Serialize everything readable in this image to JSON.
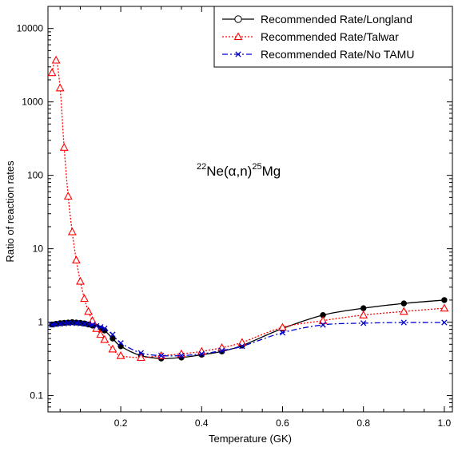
{
  "chart_data": {
    "type": "line",
    "title": "",
    "xlabel": "Temperature (GK)",
    "ylabel": "Ratio of reaction rates",
    "xlim": [
      0.02,
      1.02
    ],
    "ylim": [
      0.06,
      20000
    ],
    "yscale": "log",
    "grid": false,
    "legend_position": "top-right",
    "x_ticks": [
      0.2,
      0.4,
      0.6,
      0.8,
      1.0
    ],
    "x_tick_labels": [
      "0.2",
      "0.4",
      "0.6",
      "0.8",
      "1.0"
    ],
    "y_ticks": [
      0.1,
      1,
      10,
      100,
      1000,
      10000
    ],
    "y_tick_labels": [
      "0.1",
      "1",
      "10",
      "100",
      "1000",
      "10000"
    ],
    "annotation": {
      "mass1": "22",
      "element1": "Ne(",
      "alpha": "α",
      "mid": ",n)",
      "mass2": "25",
      "element2": "Mg"
    },
    "series": [
      {
        "name": "Recommended Rate/Longland",
        "color": "#000000",
        "marker": "circle",
        "dash": "solid",
        "x": [
          0.03,
          0.04,
          0.05,
          0.06,
          0.07,
          0.08,
          0.09,
          0.1,
          0.11,
          0.12,
          0.13,
          0.14,
          0.15,
          0.16,
          0.18,
          0.2,
          0.25,
          0.3,
          0.35,
          0.4,
          0.45,
          0.5,
          0.6,
          0.7,
          0.8,
          0.9,
          1.0
        ],
        "values": [
          0.93,
          0.95,
          0.97,
          0.98,
          0.99,
          1.0,
          0.99,
          0.98,
          0.96,
          0.93,
          0.9,
          0.86,
          0.82,
          0.77,
          0.6,
          0.47,
          0.35,
          0.32,
          0.33,
          0.36,
          0.4,
          0.48,
          0.82,
          1.25,
          1.55,
          1.8,
          2.0
        ]
      },
      {
        "name": "Recommended Rate/Talwar",
        "color": "#ff0000",
        "marker": "triangle",
        "dash": "dotted",
        "x": [
          0.03,
          0.04,
          0.05,
          0.06,
          0.07,
          0.08,
          0.09,
          0.1,
          0.11,
          0.12,
          0.13,
          0.14,
          0.15,
          0.16,
          0.18,
          0.2,
          0.25,
          0.3,
          0.35,
          0.4,
          0.45,
          0.5,
          0.6,
          0.7,
          0.8,
          0.9,
          1.0
        ],
        "values": [
          2500,
          3700,
          1550,
          240,
          52,
          17,
          7.0,
          3.6,
          2.1,
          1.4,
          1.05,
          0.82,
          0.68,
          0.58,
          0.43,
          0.35,
          0.33,
          0.35,
          0.37,
          0.4,
          0.45,
          0.53,
          0.85,
          1.05,
          1.25,
          1.4,
          1.55
        ]
      },
      {
        "name": "Recommended Rate/No TAMU",
        "color": "#0000cc",
        "marker": "x",
        "dash": "dashdot",
        "x": [
          0.03,
          0.04,
          0.05,
          0.06,
          0.07,
          0.08,
          0.09,
          0.1,
          0.11,
          0.12,
          0.13,
          0.14,
          0.15,
          0.16,
          0.18,
          0.2,
          0.25,
          0.3,
          0.35,
          0.4,
          0.45,
          0.5,
          0.6,
          0.7,
          0.8,
          0.9,
          1.0
        ],
        "values": [
          0.92,
          0.94,
          0.95,
          0.96,
          0.97,
          0.97,
          0.97,
          0.96,
          0.95,
          0.94,
          0.92,
          0.89,
          0.86,
          0.82,
          0.68,
          0.52,
          0.38,
          0.35,
          0.35,
          0.37,
          0.41,
          0.47,
          0.72,
          0.92,
          0.97,
          0.99,
          0.99
        ]
      }
    ]
  }
}
